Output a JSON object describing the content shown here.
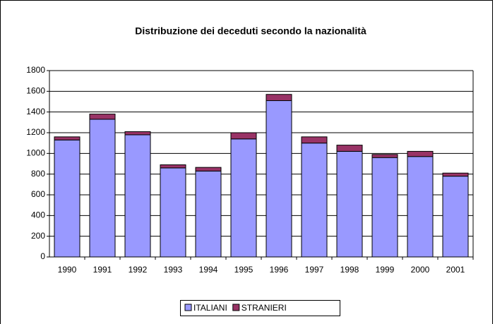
{
  "chart_data": {
    "type": "stacked_bar",
    "title": "Distribuzione dei deceduti secondo la nazionalità",
    "categories": [
      "1990",
      "1991",
      "1992",
      "1993",
      "1994",
      "1995",
      "1996",
      "1997",
      "1998",
      "1999",
      "2000",
      "2001"
    ],
    "series": [
      {
        "name": "ITALIANI",
        "color": "#9999ff",
        "values": [
          1130,
          1330,
          1180,
          860,
          830,
          1140,
          1510,
          1100,
          1020,
          960,
          970,
          780
        ]
      },
      {
        "name": "STRANIERI",
        "color": "#993366",
        "values": [
          30,
          50,
          30,
          30,
          35,
          60,
          60,
          60,
          60,
          30,
          50,
          30
        ]
      }
    ],
    "ylim": [
      0,
      1800
    ],
    "yticks": [
      0,
      200,
      400,
      600,
      800,
      1000,
      1200,
      1400,
      1600,
      1800
    ],
    "grid": true,
    "legend": "bottom"
  }
}
